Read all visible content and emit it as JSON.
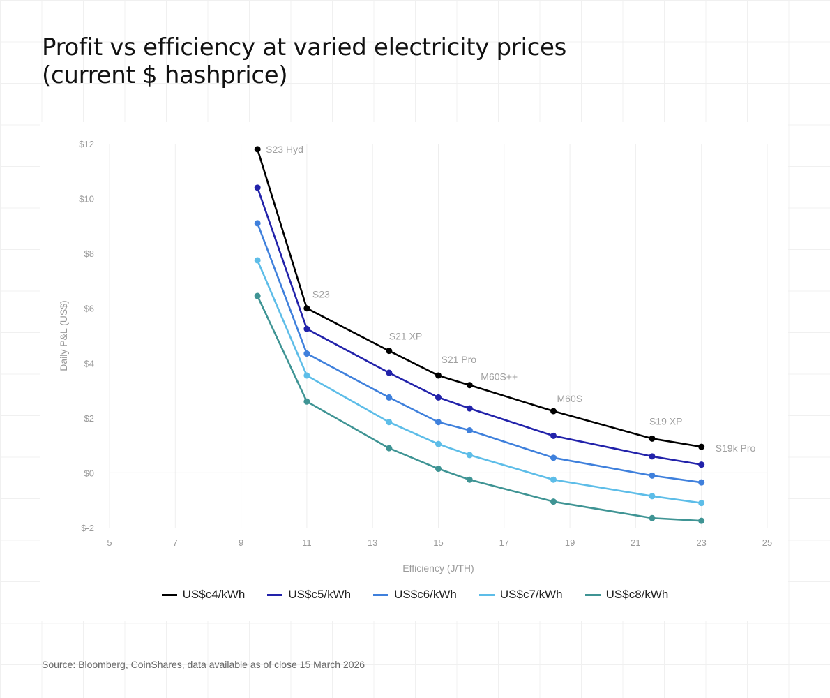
{
  "title_line1": "Profit vs efficiency at varied electricity prices",
  "title_line2": "(current $ hashprice)",
  "source": "Source: Bloomberg, CoinShares, data available as of close 15 March 2026",
  "chart_data": {
    "type": "line",
    "xlabel": "Efficiency (J/TH)",
    "ylabel": "Daily P&L (US$)",
    "xlim": [
      5,
      25
    ],
    "ylim": [
      -2,
      12
    ],
    "xticks": [
      5,
      7,
      9,
      11,
      13,
      15,
      17,
      19,
      21,
      23,
      25
    ],
    "yticks": [
      -2,
      0,
      2,
      4,
      6,
      8,
      10,
      12
    ],
    "ytick_labels": [
      "$-2",
      "$0",
      "$2",
      "$4",
      "$6",
      "$8",
      "$10",
      "$12"
    ],
    "grid": true,
    "legend_position": "bottom",
    "x": [
      9.5,
      11,
      13.5,
      15,
      15.95,
      18.5,
      21.5,
      23
    ],
    "point_labels": [
      "S23 Hyd",
      "S23",
      "S21 XP",
      "S21 Pro",
      "M60S++",
      "M60S",
      "S19 XP",
      "S19k Pro"
    ],
    "series": [
      {
        "name": "US$c4/kWh",
        "color": "#000000",
        "values": [
          11.8,
          6.0,
          4.45,
          3.55,
          3.2,
          2.25,
          1.25,
          0.95
        ]
      },
      {
        "name": "US$c5/kWh",
        "color": "#2222aa",
        "values": [
          10.4,
          5.25,
          3.65,
          2.75,
          2.35,
          1.35,
          0.6,
          0.3
        ]
      },
      {
        "name": "US$c6/kWh",
        "color": "#3f80dc",
        "values": [
          9.1,
          4.35,
          2.75,
          1.85,
          1.55,
          0.55,
          -0.1,
          -0.35
        ]
      },
      {
        "name": "US$c7/kWh",
        "color": "#5dbde8",
        "values": [
          7.75,
          3.55,
          1.85,
          1.05,
          0.65,
          -0.25,
          -0.85,
          -1.1
        ]
      },
      {
        "name": "US$c8/kWh",
        "color": "#3f9494",
        "values": [
          6.45,
          2.6,
          0.9,
          0.15,
          -0.25,
          -1.05,
          -1.65,
          -1.75
        ]
      }
    ]
  }
}
